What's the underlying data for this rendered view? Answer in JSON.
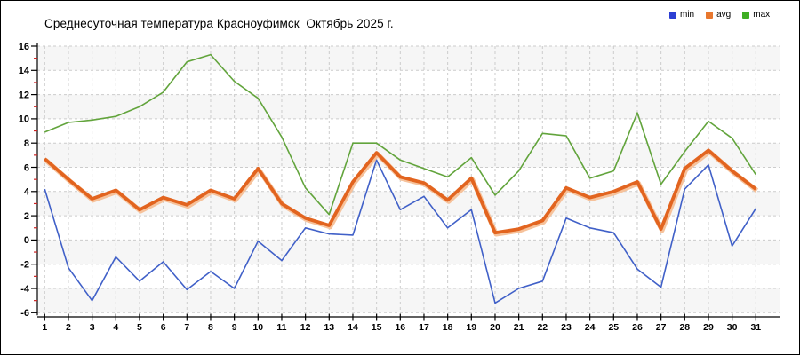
{
  "header": {
    "title": "Среднесуточная температура Красноуфимск  Октябрь 2025 г."
  },
  "legend": {
    "items": [
      {
        "label": "min",
        "color": "#2c3fd3"
      },
      {
        "label": "avg",
        "color": "#e8772e"
      },
      {
        "label": "max",
        "color": "#3fae23"
      }
    ]
  },
  "chart_data": {
    "type": "line",
    "title": "Среднесуточная температура Красноуфимск  Октябрь 2025 г.",
    "x": [
      1,
      2,
      3,
      4,
      5,
      6,
      7,
      8,
      9,
      10,
      11,
      12,
      13,
      14,
      15,
      16,
      17,
      18,
      19,
      20,
      21,
      22,
      23,
      24,
      25,
      26,
      27,
      28,
      29,
      30,
      31
    ],
    "xlabel": "",
    "ylabel": "",
    "ylim": [
      -6,
      16
    ],
    "yticks": [
      16,
      14,
      12,
      10,
      8,
      6,
      4,
      2,
      0,
      -2,
      -4,
      -6
    ],
    "minor_yticks": [
      15,
      13,
      11,
      9,
      7,
      5,
      3,
      1,
      -1,
      -3,
      -5
    ],
    "grid": "dashed",
    "legend_position": "top-right",
    "colors": {
      "grid": "#cccccc",
      "band": "#f6f6f6",
      "axis": "#000000",
      "minor_tick": "#cc2222",
      "tick_label": "#111111"
    },
    "series": [
      {
        "name": "min",
        "color": "#4060c8",
        "width": 1.6,
        "values": [
          4.2,
          -2.3,
          -5.0,
          -1.4,
          -3.4,
          -1.8,
          -4.1,
          -2.6,
          -4.0,
          -0.1,
          -1.7,
          1.0,
          0.5,
          0.4,
          6.6,
          2.5,
          3.6,
          1.0,
          2.5,
          -5.2,
          -4.0,
          -3.4,
          1.8,
          1.0,
          0.6,
          -2.4,
          -3.9,
          4.2,
          6.2,
          -0.5,
          2.6
        ]
      },
      {
        "name": "avg",
        "color": "#e2641f",
        "width": 3.8,
        "halo_color": "#f6c29b",
        "values": [
          6.7,
          5.0,
          3.4,
          4.1,
          2.5,
          3.5,
          2.9,
          4.1,
          3.4,
          5.9,
          3.0,
          1.8,
          1.2,
          4.8,
          7.2,
          5.2,
          4.7,
          3.3,
          5.1,
          0.6,
          0.9,
          1.6,
          4.3,
          3.5,
          4.0,
          4.8,
          0.9,
          5.9,
          7.4,
          5.7,
          4.2
        ]
      },
      {
        "name": "max",
        "color": "#62a43c",
        "width": 1.6,
        "values": [
          8.9,
          9.7,
          9.9,
          10.2,
          11.0,
          12.2,
          14.7,
          15.3,
          13.1,
          11.7,
          8.5,
          4.3,
          2.1,
          8.0,
          8.0,
          6.6,
          5.9,
          5.2,
          6.8,
          3.7,
          5.7,
          8.8,
          8.6,
          5.1,
          5.7,
          10.5,
          4.6,
          7.3,
          9.8,
          8.4,
          5.4
        ]
      }
    ]
  }
}
